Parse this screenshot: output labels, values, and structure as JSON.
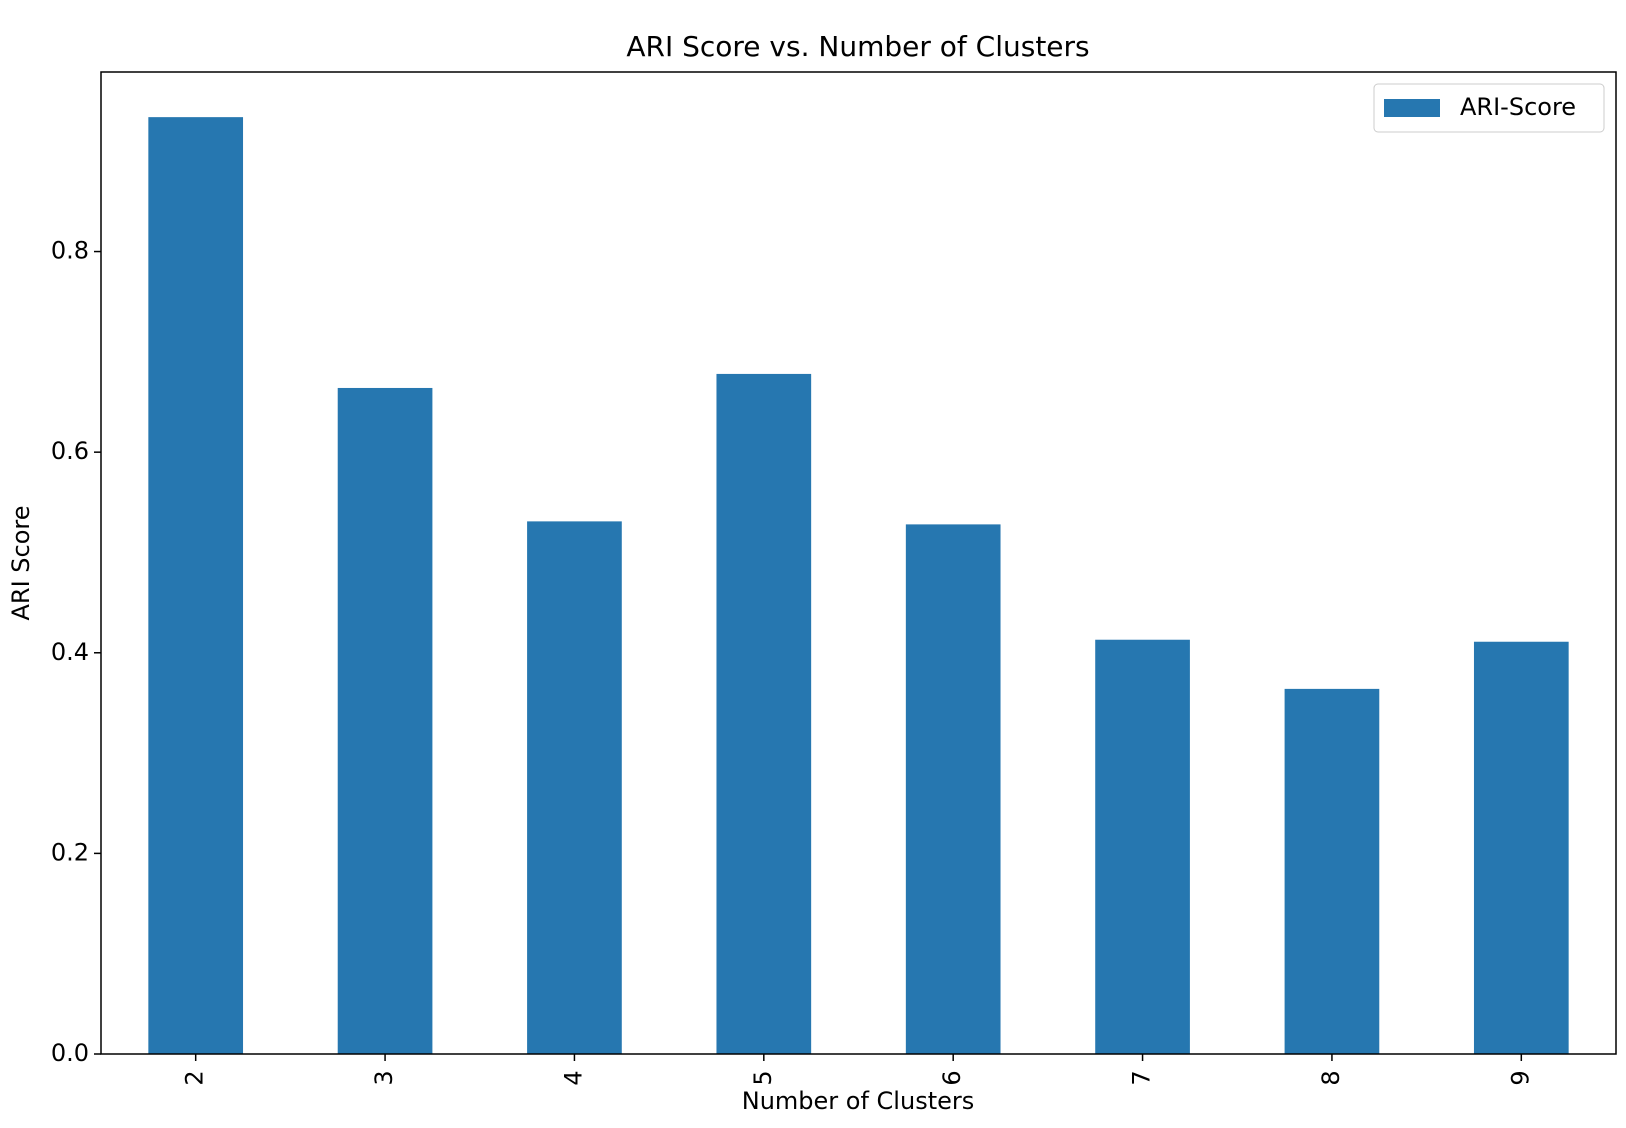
{
  "chart_data": {
    "type": "bar",
    "title": "ARI Score vs. Number of Clusters",
    "x_label": "Number of Clusters",
    "y_label": "ARI Score",
    "categories": [
      "2",
      "3",
      "4",
      "5",
      "6",
      "7",
      "8",
      "9"
    ],
    "series": [
      {
        "name": "ARI-Score",
        "color": "#2677b0",
        "values": [
          0.934,
          0.664,
          0.531,
          0.678,
          0.528,
          0.413,
          0.364,
          0.411
        ]
      }
    ],
    "ylim": [
      0,
      0.979
    ],
    "yticks": [
      {
        "value": 0,
        "label": "0.0"
      },
      0.2,
      0.4,
      0.6,
      0.8
    ],
    "legend": "upper right",
    "grid": false
  }
}
